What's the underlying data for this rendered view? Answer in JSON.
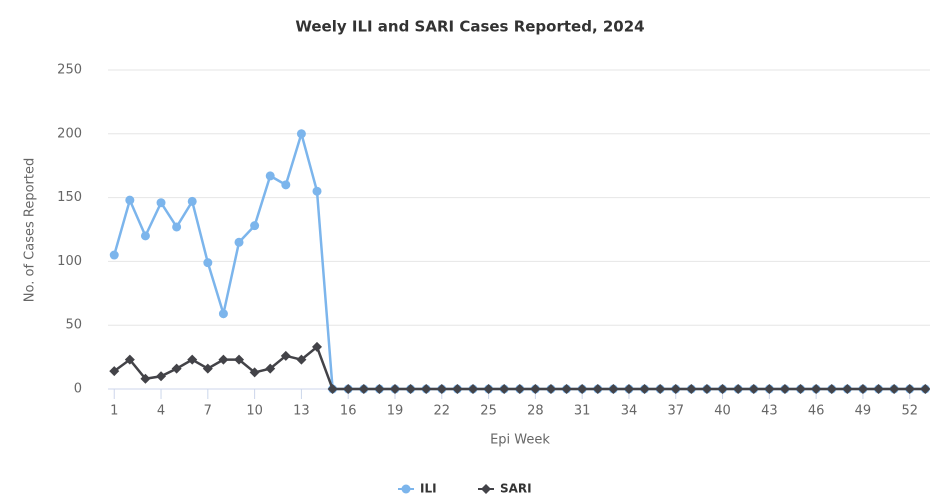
{
  "chart_data": {
    "type": "line",
    "title": "Weely ILI and SARI Cases Reported, 2024",
    "xlabel": "Epi Week",
    "ylabel": "No. of Cases Reported",
    "x": [
      1,
      2,
      3,
      4,
      5,
      6,
      7,
      8,
      9,
      10,
      11,
      12,
      13,
      14,
      15,
      16,
      17,
      18,
      19,
      20,
      21,
      22,
      23,
      24,
      25,
      26,
      27,
      28,
      29,
      30,
      31,
      32,
      33,
      34,
      35,
      36,
      37,
      38,
      39,
      40,
      41,
      42,
      43,
      44,
      45,
      46,
      47,
      48,
      49,
      50,
      51,
      52,
      53
    ],
    "series": [
      {
        "name": "ILI",
        "color": "#7cb5ec",
        "marker": "circle",
        "values": [
          105,
          148,
          120,
          146,
          127,
          147,
          99,
          59,
          115,
          128,
          167,
          160,
          200,
          155,
          0,
          0,
          0,
          0,
          0,
          0,
          0,
          0,
          0,
          0,
          0,
          0,
          0,
          0,
          0,
          0,
          0,
          0,
          0,
          0,
          0,
          0,
          0,
          0,
          0,
          0,
          0,
          0,
          0,
          0,
          0,
          0,
          0,
          0,
          0,
          0,
          0,
          0,
          0
        ]
      },
      {
        "name": "SARI",
        "color": "#434348",
        "marker": "diamond",
        "values": [
          14,
          23,
          8,
          10,
          16,
          23,
          16,
          23,
          23,
          13,
          16,
          26,
          23,
          33,
          0,
          0,
          0,
          0,
          0,
          0,
          0,
          0,
          0,
          0,
          0,
          0,
          0,
          0,
          0,
          0,
          0,
          0,
          0,
          0,
          0,
          0,
          0,
          0,
          0,
          0,
          0,
          0,
          0,
          0,
          0,
          0,
          0,
          0,
          0,
          0,
          0,
          0,
          0
        ]
      }
    ],
    "xlim": [
      0.6,
      53.3
    ],
    "xticks": [
      1,
      4,
      7,
      10,
      13,
      16,
      19,
      22,
      25,
      28,
      31,
      34,
      37,
      40,
      43,
      46,
      49,
      52
    ],
    "ylim": [
      0,
      250
    ],
    "yticks": [
      0,
      50,
      100,
      150,
      200,
      250
    ],
    "grid": true,
    "legend": "bottom"
  }
}
